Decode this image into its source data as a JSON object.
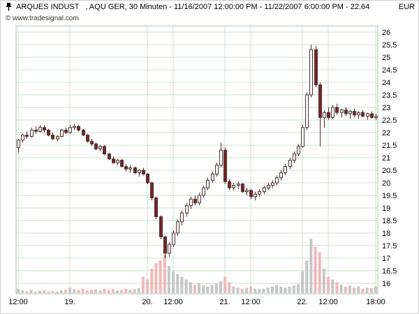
{
  "header": {
    "title": "ARQUES INDUST   , AQU GER, 30 Minuten - 11/16/2007 12:00:00 PM - 11/22/2007 6:00:00 PM - 22.64",
    "currency": "EUR",
    "copyright": "© www.tradesignal.com"
  },
  "chart_data": {
    "type": "candlestick",
    "instrument": "ARQUES INDUST",
    "symbol": "AQU GER",
    "interval": "30 Minuten",
    "range_start": "11/16/2007 12:00:00 PM",
    "range_end": "11/22/2007 6:00:00 PM",
    "last_price": 22.64,
    "currency": "EUR",
    "y_axis": {
      "min": 16,
      "max": 26,
      "step": 0.5
    },
    "y_tick_labels": [
      "26",
      "25.5",
      "25",
      "24.5",
      "24",
      "23.5",
      "23",
      "22.5",
      "22",
      "21.5",
      "21",
      "20.5",
      "20",
      "19.5",
      "19",
      "18.5",
      "18",
      "17.5",
      "17",
      "16.5",
      "16"
    ],
    "x_ticks": [
      {
        "label": "12:00",
        "bar": 0
      },
      {
        "label": "19.",
        "bar": 12
      },
      {
        "label": "20.",
        "bar": 30
      },
      {
        "label": "12:00",
        "bar": 36
      },
      {
        "label": "21.",
        "bar": 48
      },
      {
        "label": "12:00",
        "bar": 54
      },
      {
        "label": "22.",
        "bar": 66
      },
      {
        "label": "12:00",
        "bar": 72
      },
      {
        "label": "18:00",
        "bar": 83
      }
    ],
    "candles": [
      [
        21.4,
        21.75,
        21.2,
        21.7
      ],
      [
        21.7,
        21.95,
        21.6,
        21.9
      ],
      [
        21.9,
        22.05,
        21.75,
        21.85
      ],
      [
        21.85,
        22.2,
        21.8,
        22.1
      ],
      [
        22.1,
        22.25,
        21.95,
        22.05
      ],
      [
        22.05,
        22.3,
        22.0,
        22.2
      ],
      [
        22.2,
        22.3,
        22.0,
        22.1
      ],
      [
        22.1,
        22.15,
        21.85,
        21.9
      ],
      [
        21.9,
        22.0,
        21.7,
        21.75
      ],
      [
        21.75,
        21.9,
        21.65,
        21.85
      ],
      [
        21.85,
        22.15,
        21.8,
        22.1
      ],
      [
        22.1,
        22.2,
        21.95,
        22.0
      ],
      [
        22.0,
        22.3,
        21.95,
        22.2
      ],
      [
        22.2,
        22.35,
        22.1,
        22.25
      ],
      [
        22.25,
        22.3,
        22.05,
        22.1
      ],
      [
        22.1,
        22.15,
        21.85,
        21.9
      ],
      [
        21.9,
        21.95,
        21.6,
        21.65
      ],
      [
        21.65,
        21.75,
        21.45,
        21.55
      ],
      [
        21.55,
        21.6,
        21.3,
        21.35
      ],
      [
        21.35,
        21.5,
        21.25,
        21.45
      ],
      [
        21.45,
        21.5,
        21.1,
        21.15
      ],
      [
        21.15,
        21.2,
        20.9,
        20.95
      ],
      [
        20.95,
        21.05,
        20.75,
        20.8
      ],
      [
        20.8,
        20.95,
        20.7,
        20.9
      ],
      [
        20.9,
        20.95,
        20.6,
        20.65
      ],
      [
        20.65,
        20.75,
        20.45,
        20.55
      ],
      [
        20.55,
        20.7,
        20.4,
        20.6
      ],
      [
        20.6,
        20.65,
        20.35,
        20.4
      ],
      [
        20.4,
        20.55,
        20.25,
        20.5
      ],
      [
        20.5,
        20.6,
        20.3,
        20.35
      ],
      [
        20.35,
        20.4,
        19.95,
        20.0
      ],
      [
        20.0,
        20.05,
        19.3,
        19.4
      ],
      [
        19.4,
        19.45,
        18.55,
        18.65
      ],
      [
        18.65,
        18.7,
        17.75,
        17.85
      ],
      [
        17.85,
        17.9,
        17.0,
        17.2
      ],
      [
        17.2,
        17.65,
        17.05,
        17.55
      ],
      [
        17.55,
        18.1,
        17.45,
        18.0
      ],
      [
        18.0,
        18.55,
        17.9,
        18.45
      ],
      [
        18.45,
        18.9,
        18.3,
        18.8
      ],
      [
        18.8,
        19.2,
        18.65,
        19.1
      ],
      [
        19.1,
        19.45,
        18.95,
        19.35
      ],
      [
        19.35,
        19.5,
        19.1,
        19.2
      ],
      [
        19.2,
        19.6,
        19.1,
        19.5
      ],
      [
        19.5,
        19.9,
        19.4,
        19.8
      ],
      [
        19.8,
        20.2,
        19.7,
        20.1
      ],
      [
        20.1,
        20.45,
        20.0,
        20.35
      ],
      [
        20.35,
        20.8,
        20.25,
        20.7
      ],
      [
        20.7,
        21.6,
        20.6,
        21.3
      ],
      [
        21.3,
        21.4,
        19.95,
        20.05
      ],
      [
        20.05,
        20.15,
        19.7,
        19.8
      ],
      [
        19.8,
        20.0,
        19.7,
        19.9
      ],
      [
        19.9,
        20.05,
        19.75,
        19.95
      ],
      [
        19.95,
        20.0,
        19.6,
        19.65
      ],
      [
        19.65,
        19.8,
        19.5,
        19.7
      ],
      [
        19.7,
        19.75,
        19.35,
        19.45
      ],
      [
        19.45,
        19.65,
        19.3,
        19.55
      ],
      [
        19.55,
        19.75,
        19.45,
        19.65
      ],
      [
        19.65,
        19.9,
        19.55,
        19.8
      ],
      [
        19.8,
        20.0,
        19.7,
        19.9
      ],
      [
        19.9,
        20.1,
        19.8,
        20.0
      ],
      [
        20.0,
        20.3,
        19.9,
        20.2
      ],
      [
        20.2,
        20.5,
        20.1,
        20.4
      ],
      [
        20.4,
        20.75,
        20.3,
        20.65
      ],
      [
        20.65,
        21.0,
        20.55,
        20.9
      ],
      [
        20.9,
        21.25,
        20.8,
        21.15
      ],
      [
        21.15,
        21.55,
        21.05,
        21.45
      ],
      [
        21.45,
        22.3,
        21.4,
        22.2
      ],
      [
        22.2,
        23.6,
        22.1,
        23.5
      ],
      [
        23.5,
        25.5,
        23.4,
        25.3
      ],
      [
        25.3,
        25.45,
        23.8,
        23.9
      ],
      [
        23.9,
        24.0,
        21.45,
        22.6
      ],
      [
        22.6,
        22.9,
        22.2,
        22.8
      ],
      [
        22.8,
        23.0,
        22.5,
        22.6
      ],
      [
        22.6,
        23.1,
        22.55,
        23.0
      ],
      [
        23.0,
        23.15,
        22.7,
        22.8
      ],
      [
        22.8,
        22.95,
        22.6,
        22.9
      ],
      [
        22.9,
        23.0,
        22.65,
        22.75
      ],
      [
        22.75,
        22.9,
        22.55,
        22.85
      ],
      [
        22.85,
        22.95,
        22.6,
        22.7
      ],
      [
        22.7,
        22.85,
        22.55,
        22.8
      ],
      [
        22.8,
        22.9,
        22.6,
        22.65
      ],
      [
        22.65,
        22.8,
        22.5,
        22.75
      ],
      [
        22.75,
        22.85,
        22.55,
        22.6
      ],
      [
        22.6,
        22.75,
        22.5,
        22.64
      ]
    ],
    "volume": [
      8,
      5,
      4,
      6,
      3,
      4,
      5,
      3,
      4,
      3,
      5,
      6,
      10,
      7,
      6,
      8,
      5,
      6,
      7,
      5,
      8,
      6,
      7,
      5,
      6,
      8,
      6,
      7,
      9,
      30,
      25,
      45,
      55,
      60,
      70,
      50,
      40,
      35,
      30,
      25,
      20,
      15,
      18,
      14,
      12,
      15,
      18,
      22,
      30,
      20,
      12,
      10,
      8,
      10,
      12,
      8,
      7,
      8,
      10,
      12,
      15,
      12,
      10,
      12,
      14,
      16,
      40,
      60,
      100,
      85,
      75,
      45,
      30,
      25,
      20,
      15,
      12,
      14,
      10,
      12,
      8,
      10,
      9,
      12
    ],
    "colors": {
      "up": "#ffffff",
      "down": "#7b2424",
      "outline": "#4a3030",
      "grid": "#cbe2cb",
      "frame": "#a8c4a8",
      "volume_up": "#c6c6c6",
      "volume_down": "#f2b8b8",
      "text": "#000000"
    }
  }
}
